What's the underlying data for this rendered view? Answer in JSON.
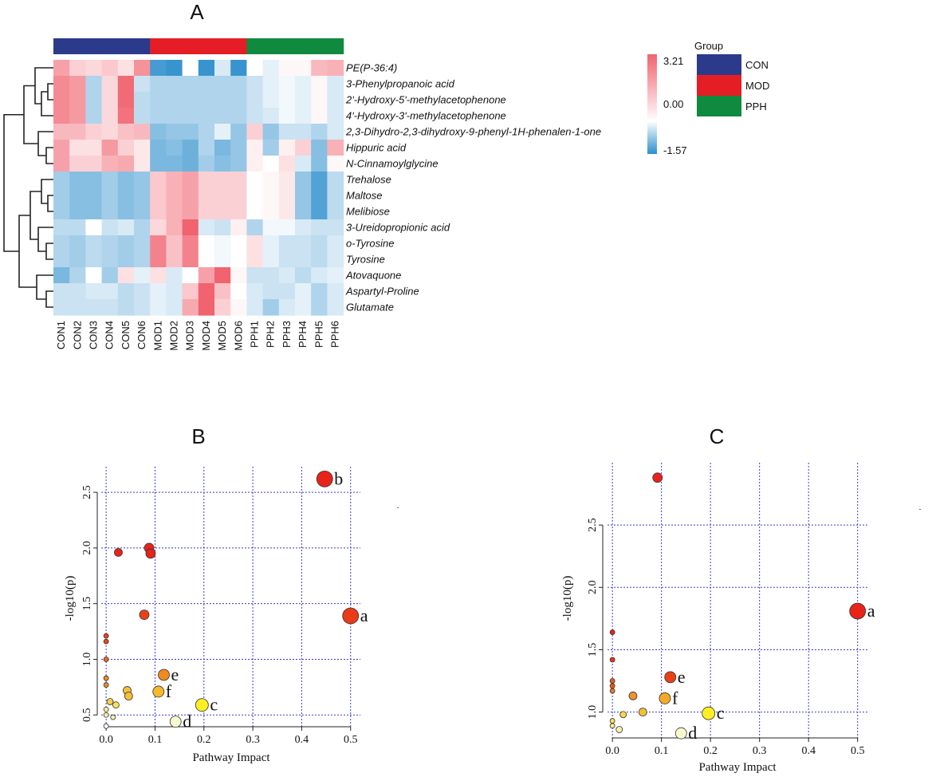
{
  "colors": {
    "CON": "#2c3a8c",
    "MOD": "#e51e25",
    "PPH": "#0f8a3e",
    "high": "#f0636f",
    "mid": "#ffffff",
    "low": "#2e8fcc",
    "grid": "#3b3bd6"
  },
  "chart_data": [
    {
      "type": "heatmap",
      "title": "A",
      "columns": [
        "CON1",
        "CON2",
        "CON3",
        "CON4",
        "CON5",
        "CON6",
        "MOD1",
        "MOD2",
        "MOD3",
        "MOD4",
        "MOD5",
        "MOD6",
        "PPH1",
        "PPH2",
        "PPH3",
        "PPH4",
        "PPH5",
        "PPH6"
      ],
      "column_groups": [
        "CON",
        "CON",
        "CON",
        "CON",
        "CON",
        "CON",
        "MOD",
        "MOD",
        "MOD",
        "MOD",
        "MOD",
        "MOD",
        "PPH",
        "PPH",
        "PPH",
        "PPH",
        "PPH",
        "PPH"
      ],
      "rows": [
        "PE(P-36:4)",
        "3-Phenylpropanoic acid",
        "2ʹ-Hydroxy-5ʹ-methylacetophenone",
        "4ʹ-Hydroxy-3ʹ-methylacetophenone",
        "2,3-Dihydro-2,3-dihydroxy-9-phenyl-1H-phenalen-1-one",
        "Hippuric acid",
        "N-Cinnamoylglycine",
        "Trehalose",
        "Maltose",
        "Melibiose",
        "3-Ureidopropionic acid",
        "o-Tyrosine",
        "Tyrosine",
        "Atovaquone",
        "Aspartyl-Proline",
        "Glutamate"
      ],
      "values": [
        [
          1.2,
          0.6,
          0.5,
          0.7,
          0.4,
          1.4,
          -1.4,
          -1.5,
          0.0,
          -1.5,
          -0.3,
          -1.5,
          0.0,
          -0.2,
          0.1,
          0.1,
          0.9,
          1.0
        ],
        [
          1.5,
          1.3,
          -0.6,
          0.5,
          1.9,
          -0.4,
          -0.6,
          -0.6,
          -0.6,
          -0.6,
          -0.6,
          -0.6,
          -0.4,
          -0.2,
          -0.1,
          -0.2,
          0.1,
          -0.3
        ],
        [
          1.5,
          1.3,
          -0.6,
          0.5,
          1.9,
          -0.5,
          -0.6,
          -0.6,
          -0.6,
          -0.6,
          -0.6,
          -0.6,
          -0.4,
          -0.2,
          -0.1,
          -0.2,
          0.1,
          -0.3
        ],
        [
          1.5,
          1.3,
          -0.6,
          0.5,
          1.8,
          -0.5,
          -0.6,
          -0.6,
          -0.6,
          -0.6,
          -0.6,
          -0.6,
          -0.4,
          -0.3,
          -0.1,
          -0.2,
          0.1,
          -0.3
        ],
        [
          0.9,
          0.9,
          0.6,
          0.5,
          0.8,
          0.9,
          -0.9,
          -0.8,
          -0.8,
          -0.6,
          -0.2,
          -0.8,
          0.6,
          -0.8,
          -0.4,
          -0.4,
          -0.6,
          -0.3
        ],
        [
          1.2,
          0.4,
          0.4,
          1.3,
          0.6,
          0.3,
          -1.0,
          -0.9,
          -1.1,
          -0.6,
          -1.0,
          -0.8,
          0.2,
          -0.7,
          0.2,
          0.6,
          -0.9,
          1.0
        ],
        [
          1.2,
          0.6,
          0.6,
          1.0,
          1.1,
          0.3,
          -1.0,
          -1.0,
          -1.1,
          -0.7,
          -0.9,
          -0.8,
          0.2,
          0.0,
          0.4,
          -0.3,
          -0.9,
          0.1
        ],
        [
          -0.7,
          -0.9,
          -0.9,
          -0.7,
          -0.9,
          -0.8,
          0.7,
          1.0,
          1.2,
          0.6,
          0.6,
          0.6,
          0.0,
          0.1,
          0.3,
          -0.8,
          -1.3,
          -0.5
        ],
        [
          -0.7,
          -0.9,
          -0.9,
          -0.7,
          -0.9,
          -0.8,
          0.7,
          1.0,
          1.2,
          0.6,
          0.6,
          0.6,
          0.0,
          0.1,
          0.3,
          -0.8,
          -1.3,
          -0.5
        ],
        [
          -0.7,
          -0.9,
          -0.9,
          -0.7,
          -0.9,
          -0.8,
          0.7,
          1.0,
          1.2,
          0.6,
          0.6,
          0.6,
          0.0,
          0.1,
          0.3,
          -0.8,
          -1.3,
          -0.5
        ],
        [
          -0.5,
          -0.5,
          0.0,
          -0.4,
          -0.3,
          -0.6,
          0.5,
          1.0,
          2.0,
          -0.3,
          -0.4,
          0.2,
          -0.6,
          -0.1,
          -0.1,
          -0.3,
          -0.4,
          -0.4
        ],
        [
          -0.6,
          -0.7,
          -0.5,
          -0.6,
          -0.7,
          -0.6,
          1.6,
          0.8,
          1.6,
          0.0,
          -0.1,
          0.0,
          0.4,
          -0.2,
          -0.4,
          -0.4,
          -0.5,
          -0.3
        ],
        [
          -0.6,
          -0.7,
          -0.5,
          -0.6,
          -0.7,
          -0.6,
          1.6,
          0.8,
          1.6,
          0.0,
          -0.1,
          0.0,
          0.4,
          -0.2,
          -0.4,
          -0.4,
          -0.5,
          -0.3
        ],
        [
          -1.0,
          -0.6,
          0.0,
          -0.7,
          0.4,
          -0.2,
          0.4,
          -0.3,
          0.0,
          1.2,
          2.1,
          0.1,
          -0.4,
          -0.4,
          -0.3,
          -0.5,
          -0.3,
          -0.2
        ],
        [
          -0.4,
          -0.4,
          -0.3,
          -0.3,
          -0.5,
          -0.4,
          -0.2,
          -0.3,
          0.7,
          2.5,
          0.8,
          0.0,
          -0.3,
          -0.4,
          -0.4,
          -0.2,
          -0.6,
          -0.3
        ],
        [
          -0.4,
          -0.4,
          -0.4,
          -0.4,
          -0.5,
          -0.4,
          -0.2,
          -0.3,
          1.1,
          2.3,
          0.6,
          0.1,
          -0.3,
          -0.7,
          -0.3,
          -0.2,
          -0.6,
          -0.3
        ]
      ],
      "scale": {
        "max": 3.21,
        "mid": 0.0,
        "min": -1.57,
        "labels": [
          "3.21",
          "0.00",
          "-1.57"
        ]
      },
      "legend_title": "Group",
      "legend_items": [
        "CON",
        "MOD",
        "PPH"
      ]
    },
    {
      "type": "scatter",
      "title": "B",
      "xlabel": "Pathway Impact",
      "ylabel": "-log10(p)",
      "xlim": [
        -0.01,
        0.52
      ],
      "ylim": [
        0.38,
        2.73
      ],
      "xticks": [
        0.0,
        0.1,
        0.2,
        0.3,
        0.4,
        0.5
      ],
      "xtick_labels": [
        "0.0",
        "0.1",
        "0.2",
        "0.3",
        "0.4",
        "0.5"
      ],
      "yticks": [
        0.5,
        1.0,
        1.5,
        2.0,
        2.5
      ],
      "ytick_labels": [
        "0.5",
        "1.0",
        "1.5",
        "2.0",
        "2.5"
      ],
      "points": [
        {
          "x": 0.447,
          "y": 2.62,
          "size": 10,
          "color": "#e8231a",
          "label": "b"
        },
        {
          "x": 0.5,
          "y": 1.39,
          "size": 10,
          "color": "#ea3a18",
          "label": "a"
        },
        {
          "x": 0.196,
          "y": 0.59,
          "size": 8,
          "color": "#ffee22",
          "label": "c"
        },
        {
          "x": 0.142,
          "y": 0.44,
          "size": 7,
          "color": "#fafad0",
          "label": "d"
        },
        {
          "x": 0.118,
          "y": 0.86,
          "size": 7,
          "color": "#ef8a20",
          "label": "e"
        },
        {
          "x": 0.107,
          "y": 0.71,
          "size": 7,
          "color": "#f5b92c",
          "label": "f"
        },
        {
          "x": 0.088,
          "y": 2.0,
          "size": 6,
          "color": "#e8231a",
          "label": ""
        },
        {
          "x": 0.091,
          "y": 1.95,
          "size": 6,
          "color": "#e8231a",
          "label": ""
        },
        {
          "x": 0.025,
          "y": 1.96,
          "size": 5,
          "color": "#e8231a",
          "label": ""
        },
        {
          "x": 0.078,
          "y": 1.4,
          "size": 6,
          "color": "#ea4018",
          "label": ""
        },
        {
          "x": 0.043,
          "y": 0.72,
          "size": 5,
          "color": "#f5c235",
          "label": ""
        },
        {
          "x": 0.046,
          "y": 0.67,
          "size": 5,
          "color": "#f5c235",
          "label": ""
        },
        {
          "x": 0.0,
          "y": 1.21,
          "size": 3,
          "color": "#e8451a",
          "label": ""
        },
        {
          "x": 0.0,
          "y": 1.16,
          "size": 3,
          "color": "#e8451a",
          "label": ""
        },
        {
          "x": 0.0,
          "y": 1.0,
          "size": 3,
          "color": "#ef6a1a",
          "label": ""
        },
        {
          "x": 0.0,
          "y": 0.83,
          "size": 3,
          "color": "#f08a20",
          "label": ""
        },
        {
          "x": 0.0,
          "y": 0.77,
          "size": 3,
          "color": "#f08a20",
          "label": ""
        },
        {
          "x": 0.008,
          "y": 0.62,
          "size": 4,
          "color": "#f5d040",
          "label": ""
        },
        {
          "x": 0.02,
          "y": 0.59,
          "size": 4,
          "color": "#f7e060",
          "label": ""
        },
        {
          "x": 0.0,
          "y": 0.55,
          "size": 3,
          "color": "#f8ec90",
          "label": ""
        },
        {
          "x": 0.0,
          "y": 0.5,
          "size": 3,
          "color": "#f8f0a8",
          "label": ""
        },
        {
          "x": 0.014,
          "y": 0.48,
          "size": 3,
          "color": "#f8f0b0",
          "label": ""
        },
        {
          "x": 0.0,
          "y": 0.4,
          "size": 3,
          "color": "#ffffff",
          "label": ""
        }
      ]
    },
    {
      "type": "scatter",
      "title": "C",
      "xlabel": "Pathway Impact",
      "ylabel": "-log10(p)",
      "xlim": [
        -0.01,
        0.52
      ],
      "ylim": [
        0.78,
        3.0
      ],
      "xticks": [
        0.0,
        0.1,
        0.2,
        0.3,
        0.4,
        0.5
      ],
      "xtick_labels": [
        "0.0",
        "0.1",
        "0.2",
        "0.3",
        "0.4",
        "0.5"
      ],
      "yticks": [
        1.0,
        1.5,
        2.0,
        2.5
      ],
      "ytick_labels": [
        "1.0",
        "1.5",
        "2.0",
        "2.5"
      ],
      "points": [
        {
          "x": 0.5,
          "y": 1.81,
          "size": 10,
          "color": "#e8231a",
          "label": "a"
        },
        {
          "x": 0.196,
          "y": 0.99,
          "size": 8,
          "color": "#ffee22",
          "label": "c"
        },
        {
          "x": 0.14,
          "y": 0.83,
          "size": 7,
          "color": "#fafad0",
          "label": "d"
        },
        {
          "x": 0.118,
          "y": 1.28,
          "size": 7,
          "color": "#ea4018",
          "label": "e"
        },
        {
          "x": 0.107,
          "y": 1.11,
          "size": 7,
          "color": "#f5a92a",
          "label": "f"
        },
        {
          "x": 0.092,
          "y": 2.88,
          "size": 6,
          "color": "#e8231a",
          "label": ""
        },
        {
          "x": 0.0,
          "y": 1.64,
          "size": 3,
          "color": "#e8231a",
          "label": ""
        },
        {
          "x": 0.0,
          "y": 1.42,
          "size": 3,
          "color": "#e8331a",
          "label": ""
        },
        {
          "x": 0.0,
          "y": 1.25,
          "size": 3,
          "color": "#ea5a1a",
          "label": ""
        },
        {
          "x": 0.0,
          "y": 1.21,
          "size": 3,
          "color": "#ea5a1a",
          "label": ""
        },
        {
          "x": 0.0,
          "y": 1.17,
          "size": 3,
          "color": "#ef7a1e",
          "label": ""
        },
        {
          "x": 0.042,
          "y": 1.13,
          "size": 5,
          "color": "#f0902a",
          "label": ""
        },
        {
          "x": 0.062,
          "y": 1.0,
          "size": 5,
          "color": "#f5c035",
          "label": ""
        },
        {
          "x": 0.022,
          "y": 0.98,
          "size": 4,
          "color": "#f7d84a",
          "label": ""
        },
        {
          "x": 0.0,
          "y": 0.93,
          "size": 3,
          "color": "#f7e060",
          "label": ""
        },
        {
          "x": 0.0,
          "y": 0.89,
          "size": 3,
          "color": "#f8ec90",
          "label": ""
        },
        {
          "x": 0.014,
          "y": 0.86,
          "size": 4,
          "color": "#f8f0b0",
          "label": ""
        }
      ]
    }
  ]
}
